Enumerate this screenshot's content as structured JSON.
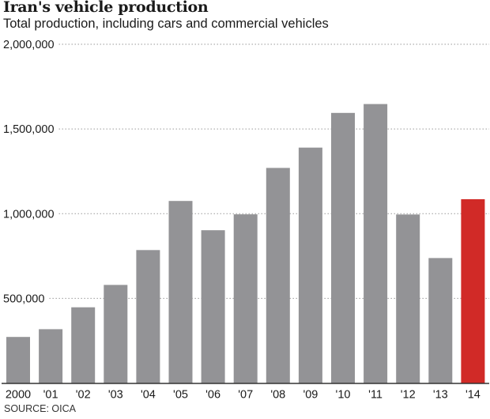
{
  "chart_data": {
    "type": "bar",
    "title": "Iran's vehicle production",
    "subtitle": "Total production, including cars and commercial vehicles",
    "source": "SOURCE: OICA",
    "xlabel": "",
    "ylabel": "",
    "ylim": [
      0,
      2000000
    ],
    "yticks": [
      500000,
      1000000,
      1500000,
      2000000
    ],
    "ytick_labels": [
      "500,000",
      "1,000,000",
      "1,500,000",
      "2,000,000"
    ],
    "grid": true,
    "categories": [
      "2000",
      "'01",
      "'02",
      "'03",
      "'04",
      "'05",
      "'06",
      "'07",
      "'08",
      "'09",
      "'10",
      "'11",
      "'12",
      "'13",
      "'14"
    ],
    "values": [
      272000,
      318000,
      447000,
      579000,
      785000,
      1075000,
      902000,
      996000,
      1270000,
      1390000,
      1595000,
      1647000,
      995000,
      738000,
      1085000
    ],
    "highlight_index": 14,
    "colors": {
      "bar": "#939396",
      "highlight": "#d12a27",
      "grid": "#9a9a9a",
      "axis": "#333333"
    }
  }
}
